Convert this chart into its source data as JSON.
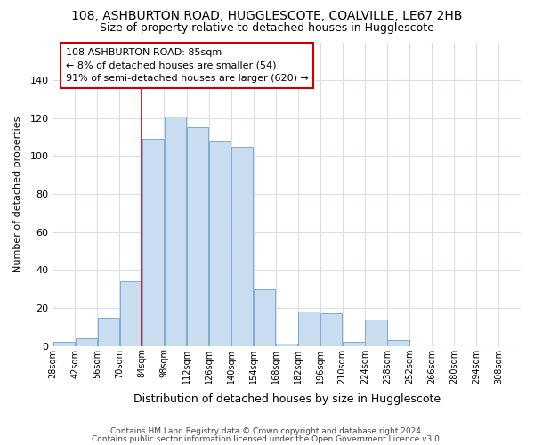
{
  "title_line1": "108, ASHBURTON ROAD, HUGGLESCOTE, COALVILLE, LE67 2HB",
  "title_line2": "Size of property relative to detached houses in Hugglescote",
  "xlabel": "Distribution of detached houses by size in Hugglescote",
  "ylabel": "Number of detached properties",
  "bin_labels": [
    "28sqm",
    "42sqm",
    "56sqm",
    "70sqm",
    "84sqm",
    "98sqm",
    "112sqm",
    "126sqm",
    "140sqm",
    "154sqm",
    "168sqm",
    "182sqm",
    "196sqm",
    "210sqm",
    "224sqm",
    "238sqm",
    "252sqm",
    "266sqm",
    "280sqm",
    "294sqm",
    "308sqm"
  ],
  "bin_left_edges": [
    28,
    42,
    56,
    70,
    84,
    98,
    112,
    126,
    140,
    154,
    168,
    182,
    196,
    210,
    224,
    238,
    252,
    266,
    280,
    294,
    308
  ],
  "bar_heights": [
    2,
    4,
    15,
    34,
    109,
    121,
    115,
    108,
    105,
    30,
    1,
    18,
    17,
    2,
    14,
    3,
    0,
    0,
    0,
    0,
    0
  ],
  "bar_color": "#c9dcf0",
  "bar_edge_color": "#7aadd4",
  "bin_width": 14,
  "vline_x": 84,
  "vline_color": "#cc0000",
  "ann_line1": "108 ASHBURTON ROAD: 85sqm",
  "ann_line2": "← 8% of detached houses are smaller (54)",
  "ann_line3": "91% of semi-detached houses are larger (620) →",
  "ann_box_edge": "#cc0000",
  "ylim": [
    0,
    160
  ],
  "yticks": [
    0,
    20,
    40,
    60,
    80,
    100,
    120,
    140,
    160
  ],
  "bg_color": "#f7f9fd",
  "grid_color": "#d8dde8",
  "footer1": "Contains HM Land Registry data © Crown copyright and database right 2024.",
  "footer2": "Contains public sector information licensed under the Open Government Licence v3.0."
}
